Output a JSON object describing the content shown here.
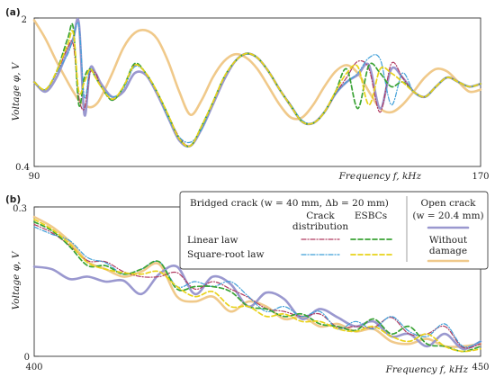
{
  "colors": {
    "linear_crack": "#b03a60",
    "sqrt_crack": "#3f9fd8",
    "linear_esbc": "#3aa335",
    "sqrt_esbc": "#e8d21a",
    "open_crack": "#9a98cf",
    "without_damage": "#f0c98a"
  },
  "legend": {
    "bridged_title": "Bridged crack (w = 40 mm, Δb = 20 mm)",
    "col_crack": [
      "Crack",
      "distribution"
    ],
    "col_esbc": "ESBCs",
    "row_linear": "Linear law",
    "row_sqrt": "Square-root law",
    "open_title": "Open crack",
    "open_sub": "(w = 20.4 mm)",
    "without": [
      "Without",
      "damage"
    ]
  },
  "chart_data": [
    {
      "panel": "(a)",
      "type": "line",
      "xlabel": "Frequency  f,  kHz",
      "ylabel": "Voltage φ,  V",
      "xlim": [
        90,
        170
      ],
      "ylim": [
        0.4,
        2
      ],
      "x_ticks": [
        "90",
        "170"
      ],
      "y_ticks": [
        "0.4",
        "2"
      ],
      "y_scale": "log",
      "grid": false,
      "x": [
        90,
        92,
        94,
        96,
        97,
        98,
        99,
        100,
        101,
        102,
        104,
        106,
        108,
        110,
        112,
        114,
        116,
        118,
        120,
        122,
        124,
        126,
        128,
        130,
        132,
        134,
        136,
        138,
        140,
        142,
        144,
        146,
        148,
        150,
        152,
        154,
        156,
        158,
        160,
        162,
        164,
        166,
        168,
        170
      ],
      "series": [
        {
          "name": "Linear law — Crack distribution",
          "style": "dashdot",
          "values": [
            1.0,
            0.92,
            1.1,
            1.45,
            1.5,
            0.85,
            0.75,
            1.1,
            1.1,
            0.95,
            0.82,
            0.95,
            1.2,
            1.1,
            0.9,
            0.7,
            0.55,
            0.5,
            0.62,
            0.8,
            1.05,
            1.25,
            1.35,
            1.3,
            1.12,
            0.92,
            0.78,
            0.65,
            0.64,
            0.72,
            0.88,
            1.05,
            1.25,
            1.15,
            0.72,
            1.22,
            1.05,
            0.9,
            0.85,
            0.95,
            1.05,
            1.0,
            0.95,
            0.98
          ]
        },
        {
          "name": "Square-root law — Crack distribution",
          "style": "dashdot",
          "values": [
            1.0,
            0.92,
            1.1,
            1.35,
            1.6,
            1.85,
            0.85,
            1.15,
            1.05,
            0.95,
            0.85,
            0.93,
            1.18,
            1.1,
            0.9,
            0.68,
            0.55,
            0.52,
            0.6,
            0.8,
            1.05,
            1.25,
            1.35,
            1.3,
            1.12,
            0.92,
            0.78,
            0.66,
            0.64,
            0.72,
            0.88,
            1.0,
            1.1,
            1.3,
            1.28,
            0.78,
            1.1,
            0.9,
            0.85,
            0.95,
            1.05,
            1.0,
            0.95,
            0.98
          ]
        },
        {
          "name": "Linear law — ESBCs",
          "style": "dashed",
          "values": [
            1.0,
            0.92,
            1.12,
            1.6,
            1.8,
            0.78,
            1.05,
            1.15,
            1.05,
            0.95,
            0.82,
            0.95,
            1.22,
            1.1,
            0.9,
            0.7,
            0.54,
            0.5,
            0.62,
            0.8,
            1.05,
            1.25,
            1.36,
            1.3,
            1.12,
            0.92,
            0.77,
            0.65,
            0.64,
            0.72,
            0.9,
            1.15,
            0.75,
            1.2,
            1.1,
            0.95,
            1.0,
            0.9,
            0.85,
            0.95,
            1.05,
            1.0,
            0.95,
            0.98
          ]
        },
        {
          "name": "Square-root law — ESBCs",
          "style": "dashed",
          "values": [
            1.0,
            0.92,
            1.12,
            1.5,
            1.7,
            0.9,
            1.0,
            1.15,
            1.05,
            0.95,
            0.83,
            0.95,
            1.2,
            1.1,
            0.9,
            0.7,
            0.54,
            0.5,
            0.62,
            0.8,
            1.05,
            1.25,
            1.36,
            1.3,
            1.12,
            0.92,
            0.77,
            0.65,
            0.64,
            0.72,
            0.9,
            1.1,
            1.18,
            0.78,
            1.15,
            1.1,
            1.0,
            0.9,
            0.85,
            0.95,
            1.05,
            1.0,
            0.95,
            0.98
          ]
        },
        {
          "name": "Open crack",
          "style": "solid-thick",
          "values": [
            1.0,
            0.9,
            1.05,
            1.4,
            1.6,
            1.9,
            0.7,
            1.15,
            1.1,
            0.98,
            0.85,
            0.9,
            1.1,
            1.08,
            0.88,
            0.68,
            0.53,
            0.5,
            0.6,
            0.78,
            1.02,
            1.25,
            1.36,
            1.3,
            1.12,
            0.92,
            0.77,
            0.65,
            0.64,
            0.72,
            0.88,
            1.0,
            1.08,
            1.2,
            0.75,
            1.15,
            1.05,
            0.9,
            0.85,
            0.95,
            1.05,
            1.0,
            0.95,
            0.98
          ]
        },
        {
          "name": "Without damage",
          "style": "solid-thick",
          "values": [
            1.95,
            1.6,
            1.25,
            1.0,
            0.9,
            0.82,
            0.78,
            0.76,
            0.78,
            0.85,
            1.1,
            1.45,
            1.7,
            1.75,
            1.6,
            1.25,
            0.9,
            0.7,
            0.82,
            1.05,
            1.25,
            1.35,
            1.3,
            1.15,
            0.95,
            0.78,
            0.68,
            0.68,
            0.78,
            0.95,
            1.12,
            1.2,
            1.1,
            0.9,
            0.75,
            0.72,
            0.78,
            0.9,
            1.05,
            1.15,
            1.12,
            1.0,
            0.9,
            0.92
          ]
        }
      ]
    },
    {
      "panel": "(b)",
      "type": "line",
      "xlabel": "Frequency  f,  kHz",
      "ylabel": "Voltage φ,  V",
      "xlim": [
        400,
        450
      ],
      "ylim": [
        0,
        0.3
      ],
      "x_ticks": [
        "400",
        "450"
      ],
      "y_ticks": [
        "0",
        "0.3"
      ],
      "grid": false,
      "x": [
        400,
        402,
        404,
        406,
        408,
        410,
        412,
        414,
        416,
        418,
        420,
        422,
        424,
        426,
        428,
        430,
        432,
        434,
        436,
        438,
        440,
        442,
        444,
        446,
        448,
        450
      ],
      "series": [
        {
          "name": "Linear law — Crack distribution",
          "style": "dashdot",
          "values": [
            0.265,
            0.248,
            0.222,
            0.192,
            0.19,
            0.17,
            0.16,
            0.16,
            0.168,
            0.135,
            0.15,
            0.135,
            0.118,
            0.096,
            0.09,
            0.08,
            0.085,
            0.058,
            0.06,
            0.058,
            0.078,
            0.045,
            0.045,
            0.06,
            0.018,
            0.025
          ]
        },
        {
          "name": "Square-root law — Crack distribution",
          "style": "dashdot",
          "values": [
            0.26,
            0.245,
            0.232,
            0.198,
            0.188,
            0.165,
            0.175,
            0.19,
            0.14,
            0.15,
            0.14,
            0.15,
            0.12,
            0.09,
            0.1,
            0.08,
            0.09,
            0.055,
            0.07,
            0.055,
            0.08,
            0.05,
            0.04,
            0.065,
            0.02,
            0.03
          ]
        },
        {
          "name": "Linear law — ESBCs",
          "style": "dashed",
          "values": [
            0.27,
            0.252,
            0.22,
            0.182,
            0.182,
            0.165,
            0.175,
            0.19,
            0.135,
            0.14,
            0.14,
            0.13,
            0.1,
            0.095,
            0.08,
            0.085,
            0.065,
            0.06,
            0.052,
            0.075,
            0.045,
            0.06,
            0.025,
            0.02,
            0.01,
            0.02
          ]
        },
        {
          "name": "Square-root law — ESBCs",
          "style": "dashed",
          "values": [
            0.275,
            0.255,
            0.225,
            0.188,
            0.175,
            0.168,
            0.165,
            0.17,
            0.14,
            0.12,
            0.13,
            0.1,
            0.1,
            0.08,
            0.085,
            0.07,
            0.07,
            0.055,
            0.05,
            0.06,
            0.04,
            0.03,
            0.045,
            0.02,
            0.01,
            0.015
          ]
        },
        {
          "name": "Open crack",
          "style": "solid-thick",
          "values": [
            0.18,
            0.175,
            0.155,
            0.16,
            0.15,
            0.152,
            0.125,
            0.165,
            0.18,
            0.125,
            0.16,
            0.145,
            0.1,
            0.128,
            0.115,
            0.075,
            0.095,
            0.078,
            0.06,
            0.07,
            0.04,
            0.045,
            0.02,
            0.045,
            0.015,
            0.03
          ]
        },
        {
          "name": "Without damage",
          "style": "solid-thick",
          "values": [
            0.28,
            0.26,
            0.23,
            0.19,
            0.175,
            0.16,
            0.17,
            0.185,
            0.12,
            0.11,
            0.12,
            0.09,
            0.11,
            0.1,
            0.075,
            0.08,
            0.06,
            0.065,
            0.05,
            0.055,
            0.03,
            0.025,
            0.035,
            0.02,
            0.02,
            0.025
          ]
        }
      ]
    }
  ]
}
